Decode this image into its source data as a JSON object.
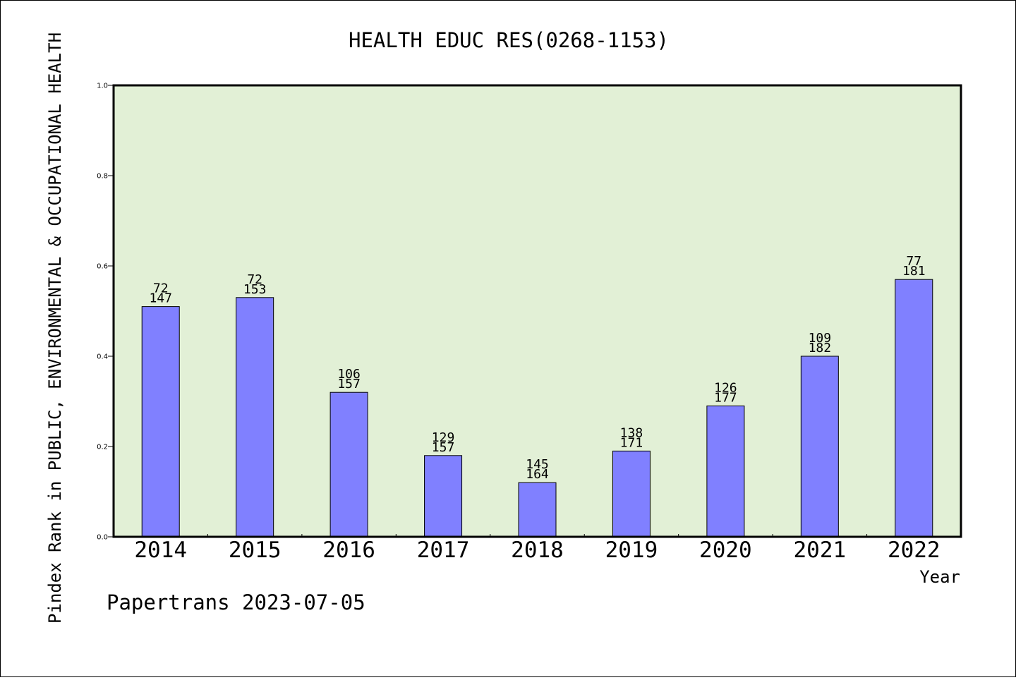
{
  "chart_data": {
    "type": "bar",
    "title": "HEALTH EDUC RES(0268-1153)",
    "xlabel": "Year",
    "ylabel": "Pindex Rank in PUBLIC, ENVIRONMENTAL & OCCUPATIONAL HEALTH",
    "ylim": [
      0,
      1.0
    ],
    "yticks": [
      "0.0",
      "0.2",
      "0.4",
      "0.6",
      "0.8",
      "1.0"
    ],
    "grid": false,
    "categories": [
      "2014",
      "2015",
      "2016",
      "2017",
      "2018",
      "2019",
      "2020",
      "2021",
      "2022"
    ],
    "values": [
      0.51,
      0.53,
      0.32,
      0.18,
      0.12,
      0.19,
      0.29,
      0.4,
      0.57
    ],
    "rank_labels": [
      "72",
      "72",
      "106",
      "129",
      "145",
      "138",
      "126",
      "109",
      "77"
    ],
    "total_labels": [
      "147",
      "153",
      "157",
      "157",
      "164",
      "171",
      "177",
      "182",
      "181"
    ],
    "colors": {
      "bar_fill": "#8080ff",
      "plot_background": "#e2f0d6",
      "axis": "#000000"
    }
  },
  "footer": "Papertrans 2023-07-05"
}
